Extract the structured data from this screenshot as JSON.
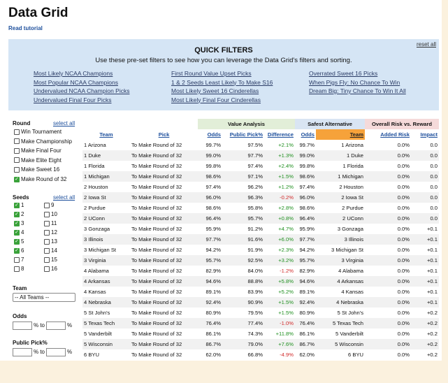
{
  "header": {
    "title": "Data Grid",
    "tutorial": "Read tutorial"
  },
  "quick_filters": {
    "reset": "reset all",
    "title": "QUICK FILTERS",
    "description": "Use these pre-set filters to see how you can leverage the Data Grid's filters and sorting.",
    "columns": [
      [
        "Most Likely NCAA Champions",
        "Most Popular NCAA Champions",
        "Undervalued NCAA Champion Picks",
        "Undervalued Final Four Picks"
      ],
      [
        "First Round Value Upset Picks",
        "1 & 2 Seeds Least Likely To Make S16",
        "Most Likely Sweet 16 Cinderellas",
        "Most Likely Final Four Cinderellas"
      ],
      [
        "Overrated Sweet 16 Picks",
        "When Pigs Fly: No Chance To Win",
        "Dream Big: Tiny Chance To Win It All"
      ]
    ]
  },
  "sidebar": {
    "round": {
      "label": "Round",
      "select_all": "select all",
      "options": [
        {
          "label": "Win Tournament",
          "checked": false
        },
        {
          "label": "Make Championship",
          "checked": false
        },
        {
          "label": "Make Final Four",
          "checked": false
        },
        {
          "label": "Make Elite Eight",
          "checked": false
        },
        {
          "label": "Make Sweet 16",
          "checked": false
        },
        {
          "label": "Make Round of 32",
          "checked": true
        }
      ]
    },
    "seeds": {
      "label": "Seeds",
      "select_all": "select all",
      "options": [
        {
          "label": "1",
          "checked": true
        },
        {
          "label": "2",
          "checked": true
        },
        {
          "label": "3",
          "checked": true
        },
        {
          "label": "4",
          "checked": true
        },
        {
          "label": "5",
          "checked": true
        },
        {
          "label": "6",
          "checked": true
        },
        {
          "label": "7",
          "checked": false
        },
        {
          "label": "8",
          "checked": false
        },
        {
          "label": "9",
          "checked": false
        },
        {
          "label": "10",
          "checked": false
        },
        {
          "label": "11",
          "checked": false
        },
        {
          "label": "12",
          "checked": false
        },
        {
          "label": "13",
          "checked": false
        },
        {
          "label": "14",
          "checked": false
        },
        {
          "label": "15",
          "checked": false
        },
        {
          "label": "16",
          "checked": false
        }
      ]
    },
    "team": {
      "label": "Team",
      "selected": "-- All Teams --"
    },
    "odds": {
      "label": "Odds",
      "from_unit": "% to",
      "to_unit": "%"
    },
    "public_pick": {
      "label": "Public Pick%",
      "from_unit": "% to",
      "to_unit": "%"
    }
  },
  "table": {
    "groups": [
      "Value Analysis",
      "Safest Alternative",
      "Overall Risk vs. Reward"
    ],
    "columns": [
      "Team",
      "Pick",
      "Odds",
      "Public Pick%",
      "Difference",
      "Odds",
      "Team",
      "Added Risk",
      "Impact"
    ],
    "rows": [
      [
        "1 Arizona",
        "To Make Round of 32",
        "99.7%",
        "97.5%",
        "+2.1%",
        "99.7%",
        "1 Arizona",
        "0.0%",
        "0.0"
      ],
      [
        "1 Duke",
        "To Make Round of 32",
        "99.0%",
        "97.7%",
        "+1.3%",
        "99.0%",
        "1 Duke",
        "0.0%",
        "0.0"
      ],
      [
        "1 Florida",
        "To Make Round of 32",
        "99.8%",
        "97.4%",
        "+2.4%",
        "99.8%",
        "1 Florida",
        "0.0%",
        "0.0"
      ],
      [
        "1 Michigan",
        "To Make Round of 32",
        "98.6%",
        "97.1%",
        "+1.5%",
        "98.6%",
        "1 Michigan",
        "0.0%",
        "0.0"
      ],
      [
        "2 Houston",
        "To Make Round of 32",
        "97.4%",
        "96.2%",
        "+1.2%",
        "97.4%",
        "2 Houston",
        "0.0%",
        "0.0"
      ],
      [
        "2 Iowa St",
        "To Make Round of 32",
        "96.0%",
        "96.3%",
        "-0.2%",
        "96.0%",
        "2 Iowa St",
        "0.0%",
        "0.0"
      ],
      [
        "2 Purdue",
        "To Make Round of 32",
        "98.6%",
        "95.8%",
        "+2.8%",
        "98.6%",
        "2 Purdue",
        "0.0%",
        "0.0"
      ],
      [
        "2 UConn",
        "To Make Round of 32",
        "96.4%",
        "95.7%",
        "+0.8%",
        "96.4%",
        "2 UConn",
        "0.0%",
        "0.0"
      ],
      [
        "3 Gonzaga",
        "To Make Round of 32",
        "95.9%",
        "91.2%",
        "+4.7%",
        "95.9%",
        "3 Gonzaga",
        "0.0%",
        "+0.1"
      ],
      [
        "3 Illinois",
        "To Make Round of 32",
        "97.7%",
        "91.6%",
        "+6.0%",
        "97.7%",
        "3 Illinois",
        "0.0%",
        "+0.1"
      ],
      [
        "3 Michigan St",
        "To Make Round of 32",
        "94.2%",
        "91.9%",
        "+2.3%",
        "94.2%",
        "3 Michigan St",
        "0.0%",
        "+0.1"
      ],
      [
        "3 Virginia",
        "To Make Round of 32",
        "95.7%",
        "92.5%",
        "+3.2%",
        "95.7%",
        "3 Virginia",
        "0.0%",
        "+0.1"
      ],
      [
        "4 Alabama",
        "To Make Round of 32",
        "82.9%",
        "84.0%",
        "-1.2%",
        "82.9%",
        "4 Alabama",
        "0.0%",
        "+0.1"
      ],
      [
        "4 Arkansas",
        "To Make Round of 32",
        "94.6%",
        "88.8%",
        "+5.8%",
        "94.6%",
        "4 Arkansas",
        "0.0%",
        "+0.1"
      ],
      [
        "4 Kansas",
        "To Make Round of 32",
        "89.1%",
        "83.9%",
        "+5.2%",
        "89.1%",
        "4 Kansas",
        "0.0%",
        "+0.1"
      ],
      [
        "4 Nebraska",
        "To Make Round of 32",
        "92.4%",
        "90.9%",
        "+1.5%",
        "92.4%",
        "4 Nebraska",
        "0.0%",
        "+0.1"
      ],
      [
        "5 St John's",
        "To Make Round of 32",
        "80.9%",
        "79.5%",
        "+1.5%",
        "80.9%",
        "5 St John's",
        "0.0%",
        "+0.2"
      ],
      [
        "5 Texas Tech",
        "To Make Round of 32",
        "76.4%",
        "77.4%",
        "-1.0%",
        "76.4%",
        "5 Texas Tech",
        "0.0%",
        "+0.2"
      ],
      [
        "5 Vanderbilt",
        "To Make Round of 32",
        "86.1%",
        "74.3%",
        "+11.8%",
        "86.1%",
        "5 Vanderbilt",
        "0.0%",
        "+0.2"
      ],
      [
        "5 Wisconsin",
        "To Make Round of 32",
        "86.7%",
        "79.0%",
        "+7.6%",
        "86.7%",
        "5 Wisconsin",
        "0.0%",
        "+0.2"
      ],
      [
        "6 BYU",
        "To Make Round of 32",
        "62.0%",
        "66.8%",
        "-4.9%",
        "62.0%",
        "6 BYU",
        "0.0%",
        "+0.2"
      ]
    ]
  }
}
